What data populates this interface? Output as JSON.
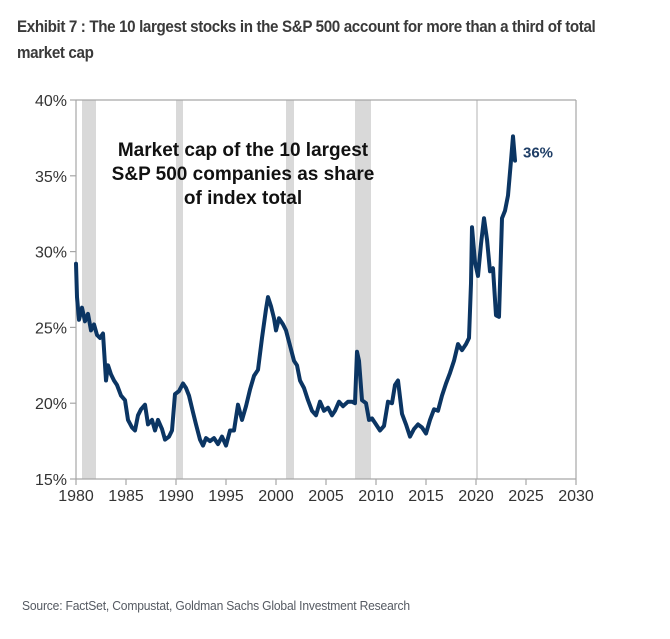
{
  "header": {
    "title": "Exhibit 7 : The 10 largest stocks in the S&P 500 account for more than a third of total market cap"
  },
  "footer": {
    "source": "Source: FactSet, Compustat, Goldman Sachs Global Investment Research"
  },
  "colors": {
    "series": "#0b3563",
    "recession": "#d9d9d9",
    "axis": "#a6a6a6",
    "end_label": "#1f3e66"
  },
  "chart_data": {
    "type": "line",
    "title": "Market cap of the 10 largest S&P 500 companies as share of index total",
    "annotation_lines": [
      "Market cap of the 10 largest",
      "S&P 500 companies as share",
      "of index total"
    ],
    "xlabel": "",
    "ylabel": "",
    "xlim": [
      1980,
      2030
    ],
    "ylim": [
      15,
      40
    ],
    "x_ticks": [
      1980,
      1985,
      1990,
      1995,
      2000,
      2005,
      2010,
      2015,
      2020,
      2025,
      2030
    ],
    "x_tick_labels": [
      "1980",
      "1985",
      "1990",
      "1995",
      "2000",
      "2005",
      "2010",
      "2015",
      "2020",
      "2025",
      "2030"
    ],
    "y_ticks": [
      15,
      20,
      25,
      30,
      35,
      40
    ],
    "y_tick_labels": [
      "15%",
      "20%",
      "25%",
      "30%",
      "35%",
      "40%"
    ],
    "grid": false,
    "legend": "none",
    "end_label": "36%",
    "recessions": [
      [
        1980.6,
        1982.0
      ],
      [
        1990.0,
        1990.7
      ],
      [
        2001.0,
        2001.8
      ],
      [
        2007.9,
        2009.5
      ],
      [
        2020.0,
        2020.15
      ]
    ],
    "series": [
      {
        "name": "Top 10 share of S&P 500 market cap (%)",
        "x": [
          1980.0,
          1980.1,
          1980.3,
          1980.6,
          1980.9,
          1981.2,
          1981.5,
          1981.8,
          1982.1,
          1982.4,
          1982.7,
          1983.0,
          1983.2,
          1983.5,
          1983.8,
          1984.1,
          1984.5,
          1984.9,
          1985.2,
          1985.6,
          1985.9,
          1986.2,
          1986.5,
          1986.9,
          1987.2,
          1987.6,
          1987.9,
          1988.2,
          1988.6,
          1988.9,
          1989.3,
          1989.6,
          1989.9,
          1990.3,
          1990.7,
          1991.0,
          1991.3,
          1991.7,
          1992.0,
          1992.4,
          1992.7,
          1993.0,
          1993.4,
          1993.8,
          1994.2,
          1994.6,
          1995.0,
          1995.4,
          1995.8,
          1996.2,
          1996.6,
          1997.0,
          1997.4,
          1997.8,
          1998.2,
          1998.6,
          1999.0,
          1999.2,
          1999.5,
          1999.8,
          2000.0,
          2000.3,
          2000.7,
          2001.0,
          2001.4,
          2001.8,
          2002.1,
          2002.4,
          2002.8,
          2003.2,
          2003.6,
          2004.0,
          2004.4,
          2004.8,
          2005.2,
          2005.6,
          2005.9,
          2006.3,
          2006.7,
          2007.2,
          2007.6,
          2007.9,
          2008.1,
          2008.3,
          2008.6,
          2009.0,
          2009.3,
          2009.6,
          2010.0,
          2010.4,
          2010.8,
          2011.2,
          2011.6,
          2011.9,
          2012.2,
          2012.6,
          2013.0,
          2013.4,
          2013.8,
          2014.2,
          2014.6,
          2015.0,
          2015.4,
          2015.8,
          2016.2,
          2016.6,
          2017.0,
          2017.4,
          2017.8,
          2018.2,
          2018.6,
          2019.0,
          2019.3,
          2019.5,
          2019.6,
          2019.9,
          2020.2,
          2020.5,
          2020.8,
          2021.1,
          2021.4,
          2021.7,
          2022.0,
          2022.3,
          2022.6,
          2022.9,
          2023.2,
          2023.5,
          2023.7,
          2023.9
        ],
        "values": [
          29.2,
          27.0,
          25.5,
          26.3,
          25.4,
          25.9,
          24.8,
          25.2,
          24.5,
          24.3,
          24.6,
          21.5,
          22.5,
          21.9,
          21.5,
          21.2,
          20.5,
          20.2,
          18.9,
          18.4,
          18.2,
          19.2,
          19.6,
          19.9,
          18.6,
          18.9,
          18.2,
          18.9,
          18.3,
          17.6,
          17.8,
          18.2,
          20.6,
          20.8,
          21.3,
          21.0,
          20.5,
          19.4,
          18.6,
          17.6,
          17.2,
          17.7,
          17.5,
          17.7,
          17.3,
          17.8,
          17.2,
          18.2,
          18.2,
          19.9,
          18.9,
          19.8,
          20.9,
          21.8,
          22.2,
          24.3,
          26.2,
          27.0,
          26.4,
          25.6,
          24.8,
          25.6,
          25.2,
          24.8,
          23.8,
          22.8,
          22.5,
          21.5,
          21.0,
          20.2,
          19.5,
          19.2,
          20.1,
          19.5,
          19.7,
          19.2,
          19.5,
          20.1,
          19.8,
          20.1,
          20.1,
          20.0,
          23.4,
          22.8,
          20.2,
          20.0,
          18.9,
          19.0,
          18.6,
          18.2,
          18.5,
          20.1,
          20.0,
          21.2,
          21.5,
          19.3,
          18.6,
          17.8,
          18.3,
          18.6,
          18.4,
          18.0,
          18.9,
          19.6,
          19.5,
          20.5,
          21.3,
          22.0,
          22.8,
          23.9,
          23.5,
          23.9,
          24.3,
          27.9,
          31.6,
          29.3,
          28.4,
          30.5,
          32.2,
          30.8,
          28.7,
          28.9,
          25.8,
          25.7,
          32.2,
          32.7,
          33.7,
          36.0,
          37.6,
          36.0
        ]
      }
    ]
  }
}
